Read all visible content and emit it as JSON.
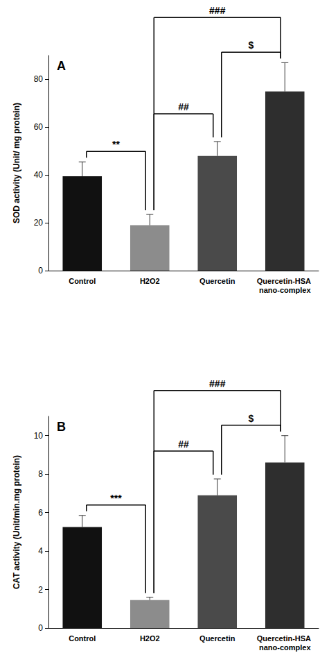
{
  "chart_data": [
    {
      "type": "bar",
      "panel_label": "A",
      "y_label": "SOD activity (Unit/ mg protein)",
      "categories": [
        "Control",
        "H2O2",
        "Quercetin",
        "Quercetin-HSA nano-complex"
      ],
      "values": [
        39.5,
        19,
        48,
        75
      ],
      "errors": [
        6,
        4.5,
        6,
        12
      ],
      "colors": [
        "#111111",
        "#8c8c8c",
        "#4a4a4a",
        "#2e2e2e"
      ],
      "ylim": [
        0,
        90
      ],
      "yticks": [
        0,
        20,
        40,
        60,
        80
      ],
      "grid": false,
      "annotations": [
        {
          "from": 0,
          "to": 1,
          "label": "**"
        },
        {
          "from": 1,
          "to": 2,
          "label": "##"
        },
        {
          "from": 1,
          "to": 3,
          "label": "###"
        },
        {
          "from": 2,
          "to": 3,
          "label": "$"
        }
      ]
    },
    {
      "type": "bar",
      "panel_label": "B",
      "y_label": "CAT activity (Unit/min.mg protein)",
      "categories": [
        "Control",
        "H2O2",
        "Quercetin",
        "Quercetin-HSA nano-complex"
      ],
      "values": [
        5.25,
        1.45,
        6.9,
        8.6
      ],
      "errors": [
        0.6,
        0.15,
        0.85,
        1.4
      ],
      "colors": [
        "#111111",
        "#8c8c8c",
        "#4a4a4a",
        "#2e2e2e"
      ],
      "ylim": [
        0,
        11
      ],
      "yticks": [
        0,
        2,
        4,
        6,
        8,
        10
      ],
      "grid": false,
      "annotations": [
        {
          "from": 0,
          "to": 1,
          "label": "***"
        },
        {
          "from": 1,
          "to": 2,
          "label": "##"
        },
        {
          "from": 1,
          "to": 3,
          "label": "###"
        },
        {
          "from": 2,
          "to": 3,
          "label": "$"
        }
      ]
    }
  ]
}
